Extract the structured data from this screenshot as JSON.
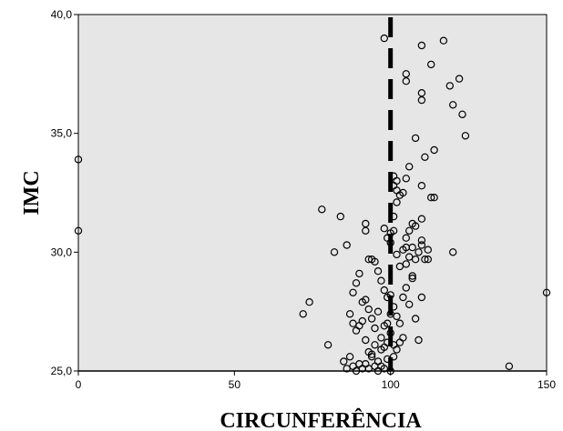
{
  "chart_data": {
    "type": "scatter",
    "title": "",
    "xlabel": "CIRCUNFERÊNCIA",
    "ylabel": "IMC",
    "xlim": [
      0,
      150
    ],
    "ylim": [
      25,
      40
    ],
    "x_ticks": [
      {
        "value": 0,
        "label": "0"
      },
      {
        "value": 50,
        "label": "50"
      },
      {
        "value": 100,
        "label": "100"
      },
      {
        "value": 150,
        "label": "150"
      }
    ],
    "y_ticks": [
      {
        "value": 25,
        "label": "25,0"
      },
      {
        "value": 30,
        "label": "30,0"
      },
      {
        "value": 35,
        "label": "35,0"
      },
      {
        "value": 40,
        "label": "40,0"
      }
    ],
    "reference_line": {
      "axis": "x",
      "value": 100,
      "style": "dashed",
      "color": "#000000"
    },
    "grid": false,
    "legend": "none",
    "plot_background": "#e6e6e6",
    "marker": "open-circle",
    "marker_color": "#000000",
    "points": [
      [
        0,
        33.9
      ],
      [
        0,
        30.9
      ],
      [
        72,
        27.4
      ],
      [
        74,
        27.9
      ],
      [
        78,
        31.8
      ],
      [
        80,
        26.1
      ],
      [
        82,
        30.0
      ],
      [
        84,
        31.5
      ],
      [
        86,
        30.3
      ],
      [
        85,
        25.4
      ],
      [
        86,
        25.1
      ],
      [
        87,
        25.6
      ],
      [
        88,
        25.2
      ],
      [
        89,
        25.0
      ],
      [
        90,
        25.3
      ],
      [
        91,
        25.1
      ],
      [
        87,
        27.4
      ],
      [
        88,
        27.0
      ],
      [
        89,
        26.7
      ],
      [
        90,
        26.9
      ],
      [
        91,
        27.1
      ],
      [
        92,
        26.3
      ],
      [
        93,
        25.8
      ],
      [
        94,
        25.6
      ],
      [
        95,
        25.2
      ],
      [
        96,
        25.4
      ],
      [
        97,
        25.9
      ],
      [
        98,
        25.1
      ],
      [
        99,
        25.5
      ],
      [
        100,
        25.0
      ],
      [
        88,
        28.3
      ],
      [
        89,
        28.7
      ],
      [
        90,
        29.1
      ],
      [
        91,
        27.9
      ],
      [
        92,
        28.0
      ],
      [
        93,
        27.6
      ],
      [
        94,
        27.2
      ],
      [
        95,
        26.8
      ],
      [
        96,
        27.5
      ],
      [
        97,
        26.4
      ],
      [
        98,
        26.0
      ],
      [
        99,
        26.2
      ],
      [
        100,
        26.6
      ],
      [
        101,
        26.1
      ],
      [
        92,
        31.2
      ],
      [
        92,
        30.9
      ],
      [
        93,
        29.7
      ],
      [
        94,
        29.7
      ],
      [
        95,
        29.6
      ],
      [
        96,
        29.2
      ],
      [
        97,
        28.8
      ],
      [
        98,
        28.4
      ],
      [
        99,
        28.1
      ],
      [
        100,
        28.2
      ],
      [
        101,
        27.7
      ],
      [
        102,
        27.3
      ],
      [
        103,
        27.0
      ],
      [
        92,
        25.3
      ],
      [
        93,
        25.1
      ],
      [
        94,
        25.7
      ],
      [
        95,
        26.1
      ],
      [
        96,
        25.0
      ],
      [
        97,
        25.2
      ],
      [
        98,
        26.9
      ],
      [
        99,
        27.0
      ],
      [
        100,
        27.4
      ],
      [
        101,
        25.6
      ],
      [
        102,
        25.9
      ],
      [
        103,
        26.2
      ],
      [
        104,
        26.4
      ],
      [
        98,
        31.0
      ],
      [
        99,
        30.6
      ],
      [
        100,
        30.8
      ],
      [
        101,
        31.5
      ],
      [
        102,
        32.1
      ],
      [
        103,
        32.4
      ],
      [
        104,
        32.5
      ],
      [
        100,
        30.4
      ],
      [
        101,
        30.9
      ],
      [
        102,
        29.9
      ],
      [
        103,
        29.4
      ],
      [
        104,
        30.1
      ],
      [
        105,
        29.5
      ],
      [
        102,
        33.0
      ],
      [
        101,
        33.2
      ],
      [
        101,
        32.8
      ],
      [
        102,
        32.6
      ],
      [
        105,
        30.6
      ],
      [
        106,
        30.9
      ],
      [
        105,
        30.2
      ],
      [
        106,
        29.8
      ],
      [
        107,
        29.0
      ],
      [
        108,
        29.7
      ],
      [
        109,
        30.0
      ],
      [
        110,
        30.3
      ],
      [
        104,
        28.1
      ],
      [
        105,
        28.5
      ],
      [
        106,
        27.8
      ],
      [
        107,
        28.9
      ],
      [
        108,
        27.2
      ],
      [
        109,
        26.3
      ],
      [
        110,
        28.1
      ],
      [
        112,
        30.1
      ],
      [
        113,
        32.3
      ],
      [
        114,
        32.3
      ],
      [
        110,
        32.8
      ],
      [
        110,
        31.4
      ],
      [
        108,
        31.1
      ],
      [
        107,
        31.2
      ],
      [
        105,
        33.1
      ],
      [
        106,
        33.6
      ],
      [
        111,
        34.0
      ],
      [
        114,
        34.3
      ],
      [
        110,
        30.5
      ],
      [
        111,
        29.7
      ],
      [
        112,
        29.7
      ],
      [
        108,
        34.8
      ],
      [
        107,
        30.2
      ],
      [
        98,
        39.0
      ],
      [
        105,
        37.5
      ],
      [
        105,
        37.2
      ],
      [
        110,
        38.7
      ],
      [
        113,
        37.9
      ],
      [
        117,
        38.9
      ],
      [
        110,
        36.7
      ],
      [
        110,
        36.4
      ],
      [
        119,
        37.0
      ],
      [
        122,
        37.3
      ],
      [
        120,
        36.2
      ],
      [
        123,
        35.8
      ],
      [
        124,
        34.9
      ],
      [
        120,
        30.0
      ],
      [
        150,
        28.3
      ],
      [
        138,
        25.2
      ]
    ]
  }
}
